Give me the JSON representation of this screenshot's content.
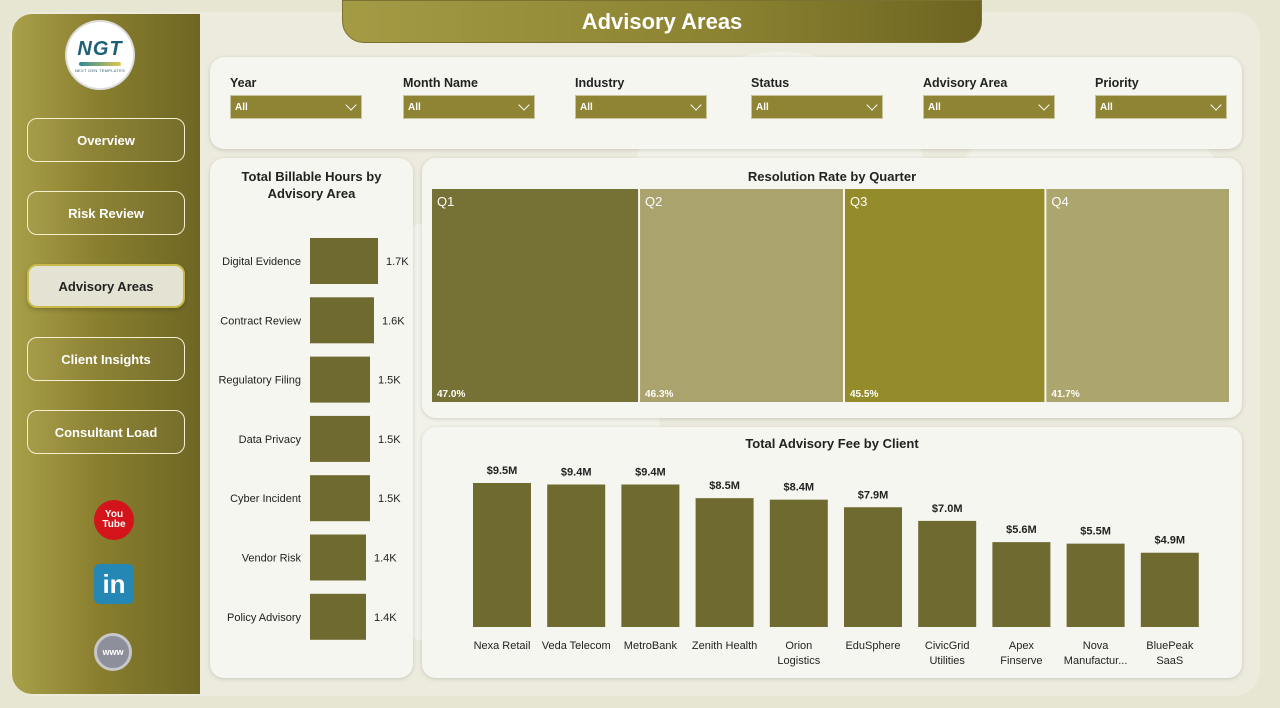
{
  "header": {
    "title": "Advisory Areas"
  },
  "logo": {
    "main": "NGT",
    "sub": "NEXT GEN TEMPLATES"
  },
  "sidebar": {
    "items": [
      {
        "label": "Overview",
        "active": false
      },
      {
        "label": "Risk Review",
        "active": false
      },
      {
        "label": "Advisory Areas",
        "active": true
      },
      {
        "label": "Client Insights",
        "active": false
      },
      {
        "label": "Consultant Load",
        "active": false
      }
    ],
    "social": {
      "youtube": "You Tube",
      "linkedin": "in",
      "web": "www"
    }
  },
  "filters": [
    {
      "label": "Year",
      "value": "All"
    },
    {
      "label": "Month Name",
      "value": "All"
    },
    {
      "label": "Industry",
      "value": "All"
    },
    {
      "label": "Status",
      "value": "All"
    },
    {
      "label": "Advisory Area",
      "value": "All"
    },
    {
      "label": "Priority",
      "value": "All"
    }
  ],
  "colors": {
    "accent": "#8e8434",
    "bar": "#6f6a30",
    "q1": "#767134",
    "q2": "#aaa36d",
    "q3": "#948c2a",
    "q4": "#aca56e"
  },
  "chart_data": [
    {
      "type": "bar",
      "orientation": "horizontal",
      "title": "Total Billable Hours by Advisory Area",
      "categories": [
        "Digital Evidence",
        "Contract Review",
        "Regulatory Filing",
        "Data Privacy",
        "Cyber Incident",
        "Vendor Risk",
        "Policy Advisory"
      ],
      "values": [
        1700,
        1600,
        1500,
        1500,
        1500,
        1400,
        1400
      ],
      "labels": [
        "1.7K",
        "1.6K",
        "1.5K",
        "1.5K",
        "1.5K",
        "1.4K",
        "1.4K"
      ]
    },
    {
      "type": "table",
      "title": "Resolution Rate by Quarter",
      "categories": [
        "Q1",
        "Q2",
        "Q3",
        "Q4"
      ],
      "values": [
        47.0,
        46.3,
        45.5,
        41.7
      ],
      "labels": [
        "47.0%",
        "46.3%",
        "45.5%",
        "41.7%"
      ]
    },
    {
      "type": "bar",
      "title": "Total Advisory Fee by Client",
      "categories": [
        "Nexa Retail",
        "Veda Telecom",
        "MetroBank",
        "Zenith Health",
        "Orion Logistics",
        "EduSphere",
        "CivicGrid Utilities",
        "Apex Finserve",
        "Nova Manufactur...",
        "BluePeak SaaS"
      ],
      "category_lines": [
        [
          "Nexa Retail"
        ],
        [
          "Veda Telecom"
        ],
        [
          "MetroBank"
        ],
        [
          "Zenith Health"
        ],
        [
          "Orion",
          "Logistics"
        ],
        [
          "EduSphere"
        ],
        [
          "CivicGrid",
          "Utilities"
        ],
        [
          "Apex",
          "Finserve"
        ],
        [
          "Nova",
          "Manufactur..."
        ],
        [
          "BluePeak",
          "SaaS"
        ]
      ],
      "values": [
        9.5,
        9.4,
        9.4,
        8.5,
        8.4,
        7.9,
        7.0,
        5.6,
        5.5,
        4.9
      ],
      "labels": [
        "$9.5M",
        "$9.4M",
        "$9.4M",
        "$8.5M",
        "$8.4M",
        "$7.9M",
        "$7.0M",
        "$5.6M",
        "$5.5M",
        "$4.9M"
      ]
    }
  ]
}
